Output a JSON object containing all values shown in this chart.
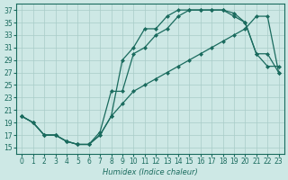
{
  "bg_color": "#cde8e5",
  "line_color": "#1a6b5e",
  "grid_color": "#a8ccc8",
  "xlabel": "Humidex (Indice chaleur)",
  "xlim": [
    -0.5,
    23.5
  ],
  "ylim": [
    14,
    38
  ],
  "xticks": [
    0,
    1,
    2,
    3,
    4,
    5,
    6,
    7,
    8,
    9,
    10,
    11,
    12,
    13,
    14,
    15,
    16,
    17,
    18,
    19,
    20,
    21,
    22,
    23
  ],
  "yticks": [
    15,
    17,
    19,
    21,
    23,
    25,
    27,
    29,
    31,
    33,
    35,
    37
  ],
  "curve1_x": [
    0,
    1,
    2,
    3,
    4,
    5,
    6,
    7,
    8,
    9,
    10,
    11,
    12,
    13,
    14,
    15,
    16,
    17,
    18,
    19,
    20,
    21,
    22,
    23
  ],
  "curve1_y": [
    20,
    19,
    17,
    17,
    16,
    15.5,
    15.5,
    17,
    20,
    29,
    31,
    34,
    34,
    36,
    37,
    37,
    37,
    37,
    37,
    36.5,
    35,
    30,
    30,
    27
  ],
  "curve2_x": [
    0,
    1,
    2,
    3,
    4,
    5,
    6,
    7,
    8,
    9,
    10,
    11,
    12,
    13,
    14,
    15,
    16,
    17,
    18,
    19,
    20,
    21,
    22,
    23
  ],
  "curve2_y": [
    20,
    19,
    17,
    17,
    16,
    15.5,
    15.5,
    17.5,
    24,
    24,
    30,
    31,
    33,
    34,
    36,
    37,
    37,
    37,
    37,
    36,
    35,
    30,
    28,
    28
  ],
  "curve3_x": [
    0,
    1,
    2,
    3,
    4,
    5,
    6,
    7,
    8,
    9,
    10,
    11,
    12,
    13,
    14,
    15,
    16,
    17,
    18,
    19,
    20,
    21,
    22,
    23
  ],
  "curve3_y": [
    20,
    19,
    17,
    17,
    16,
    15.5,
    15.5,
    17,
    20,
    22,
    24,
    25,
    26,
    27,
    28,
    29,
    30,
    31,
    32,
    33,
    34,
    36,
    36,
    27
  ]
}
